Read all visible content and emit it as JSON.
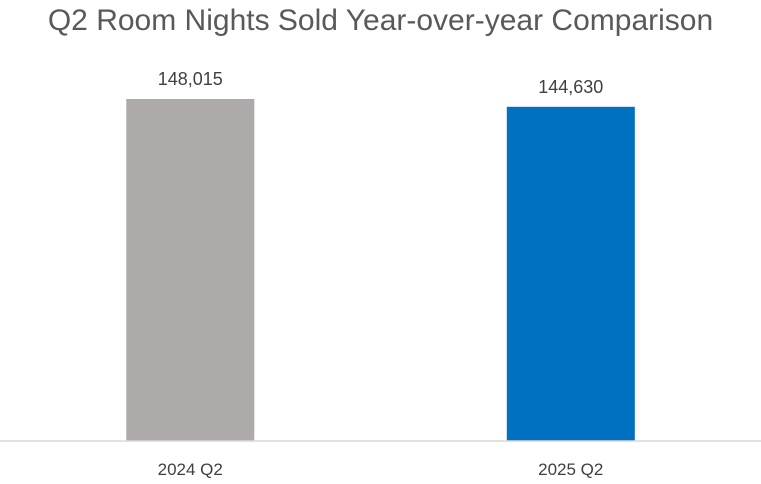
{
  "chart_data": {
    "type": "bar",
    "title": "Q2 Room Nights Sold Year-over-year Comparison",
    "categories": [
      "2024 Q2",
      "2025 Q2"
    ],
    "values": [
      148015,
      144630
    ],
    "data_labels": [
      "148,015",
      "144,630"
    ],
    "bar_colors": [
      "#AEAAAA",
      "#0070C0"
    ],
    "axis_color": "#D9D9D9",
    "ylim": [
      0,
      148015
    ],
    "grid": false,
    "legend": "none"
  }
}
